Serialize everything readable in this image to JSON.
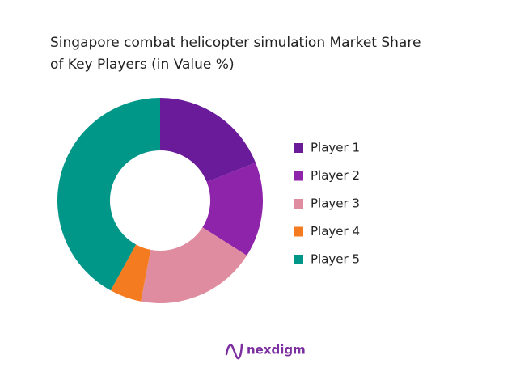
{
  "chart_data": {
    "type": "donut",
    "title": "Singapore combat helicopter simulation Market Share of Key Players (in Value %)",
    "categories": [
      "Player 1",
      "Player 2",
      "Player 3",
      "Player 4",
      "Player 5"
    ],
    "values": [
      19,
      15,
      19,
      5,
      42
    ],
    "colors": [
      "#6a1b9a",
      "#8e24aa",
      "#e08ca0",
      "#f47b20",
      "#009688"
    ],
    "legend": "right"
  },
  "footer": {
    "logo": "nexdigm"
  }
}
